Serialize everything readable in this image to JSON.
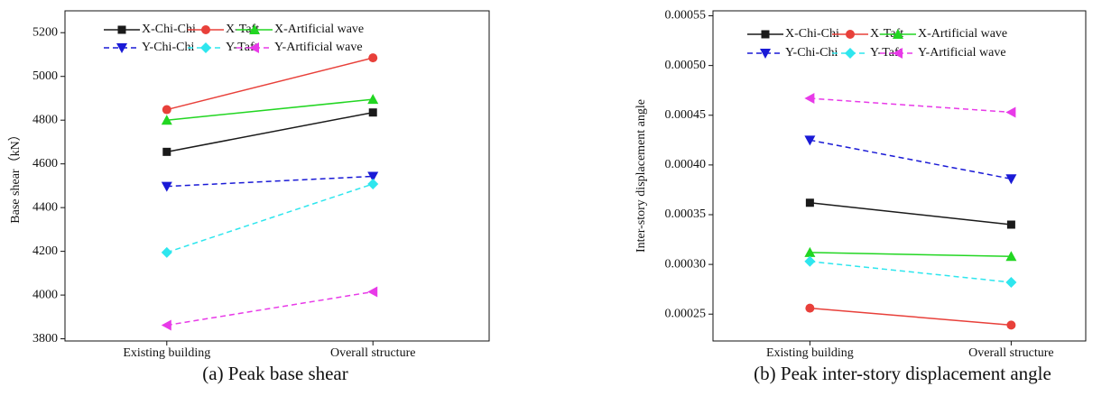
{
  "chart_data": [
    {
      "type": "line",
      "caption": "(a) Peak base shear",
      "ylabel": "Base shear（kN）",
      "categories": [
        "Existing building",
        "Overall structure"
      ],
      "ylim": [
        3790,
        5300
      ],
      "yticks": [
        3800,
        4000,
        4200,
        4400,
        4600,
        4800,
        5000,
        5200
      ],
      "series": [
        {
          "name": "X-Chi-Chi",
          "color": "#1a1a1a",
          "marker": "square",
          "dashed": false,
          "values": [
            4655,
            4835
          ]
        },
        {
          "name": "X-Taft",
          "color": "#e8403a",
          "marker": "circle",
          "dashed": false,
          "values": [
            4848,
            5085
          ]
        },
        {
          "name": "X-Artificial wave",
          "color": "#22d622",
          "marker": "triangle-up",
          "dashed": false,
          "values": [
            4800,
            4895
          ]
        },
        {
          "name": "Y-Chi-Chi",
          "color": "#1a1ad6",
          "marker": "triangle-down",
          "dashed": true,
          "values": [
            4497,
            4543
          ]
        },
        {
          "name": "Y-Taft",
          "color": "#2ee6ee",
          "marker": "diamond",
          "dashed": true,
          "values": [
            4195,
            4508
          ]
        },
        {
          "name": "Y-Artificial wave",
          "color": "#e83ae8",
          "marker": "triangle-left",
          "dashed": true,
          "values": [
            3862,
            4015
          ]
        }
      ]
    },
    {
      "type": "line",
      "caption": "(b) Peak inter-story displacement angle",
      "ylabel": "Inter-story displacement angle",
      "categories": [
        "Existing building",
        "Overall structure"
      ],
      "ylim": [
        0.000223,
        0.000555
      ],
      "yticks": [
        0.00025,
        {
          "value": 0.0003,
          "label": "0.00030"
        },
        0.00035,
        {
          "value": 0.0004,
          "label": "0.00040"
        },
        0.00045,
        {
          "value": 0.0005,
          "label": "0.00050"
        },
        0.00055
      ],
      "series": [
        {
          "name": "X-Chi-Chi",
          "color": "#1a1a1a",
          "marker": "square",
          "dashed": false,
          "values": [
            0.000362,
            0.00034
          ]
        },
        {
          "name": "X-Taft",
          "color": "#e8403a",
          "marker": "circle",
          "dashed": false,
          "values": [
            0.000256,
            0.000239
          ]
        },
        {
          "name": "X-Artificial wave",
          "color": "#22d622",
          "marker": "triangle-up",
          "dashed": false,
          "values": [
            0.000312,
            0.000308
          ]
        },
        {
          "name": "Y-Chi-Chi",
          "color": "#1a1ad6",
          "marker": "triangle-down",
          "dashed": true,
          "values": [
            0.000425,
            0.000386
          ]
        },
        {
          "name": "Y-Taft",
          "color": "#2ee6ee",
          "marker": "diamond",
          "dashed": true,
          "values": [
            0.000303,
            0.000282
          ]
        },
        {
          "name": "Y-Artificial wave",
          "color": "#e83ae8",
          "marker": "triangle-left",
          "dashed": true,
          "values": [
            0.000467,
            0.000453
          ]
        }
      ]
    }
  ]
}
